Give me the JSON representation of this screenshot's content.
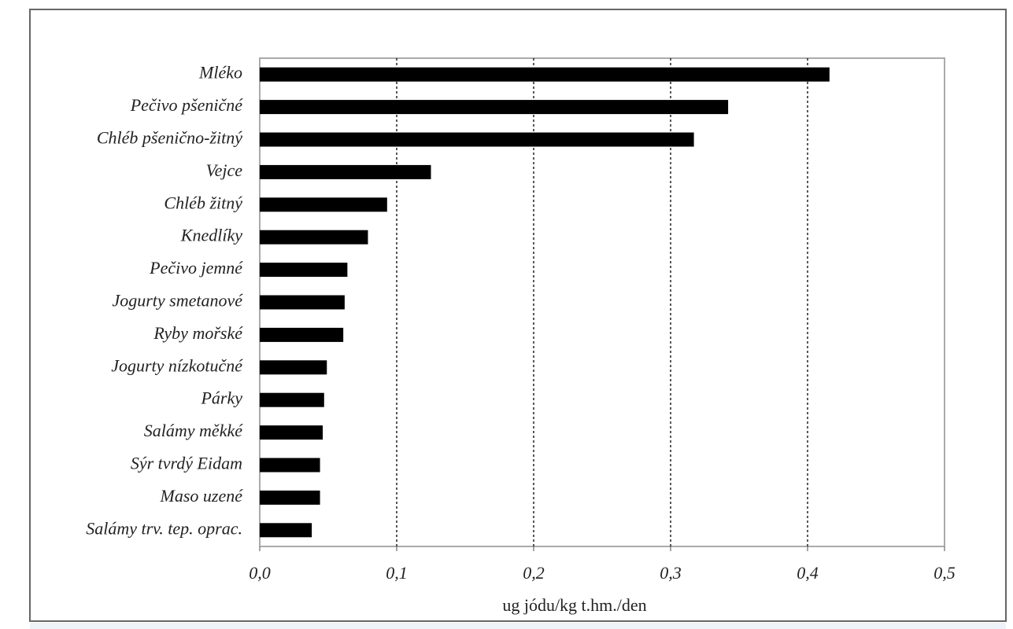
{
  "chart_data": {
    "type": "bar",
    "orientation": "horizontal",
    "x_label": "ug jódu/kg  t.hm./den",
    "categories": [
      "Mléko",
      "Pečivo pšeničné",
      "Chléb pšenično-žitný",
      "Vejce",
      "Chléb žitný",
      "Knedlíky",
      "Pečivo jemné",
      "Jogurty smetanové",
      "Ryby mořské",
      "Jogurty nízkotučné",
      "Párky",
      "Salámy měkké",
      "Sýr tvrdý Eidam",
      "Maso uzené",
      "Salámy trv. tep. oprac."
    ],
    "values": [
      0.416,
      0.342,
      0.317,
      0.125,
      0.093,
      0.079,
      0.064,
      0.062,
      0.061,
      0.049,
      0.047,
      0.046,
      0.044,
      0.044,
      0.038
    ],
    "color": "#000000",
    "xlim": [
      0,
      0.5
    ],
    "xticks": [
      {
        "value": 0,
        "label": "0,0"
      },
      {
        "value": 0.1,
        "label": "0,1"
      },
      {
        "value": 0.2,
        "label": "0,2"
      },
      {
        "value": 0.3,
        "label": "0,3"
      },
      {
        "value": 0.4,
        "label": "0,4"
      },
      {
        "value": 0.5,
        "label": "0,5"
      }
    ],
    "grid": true
  }
}
